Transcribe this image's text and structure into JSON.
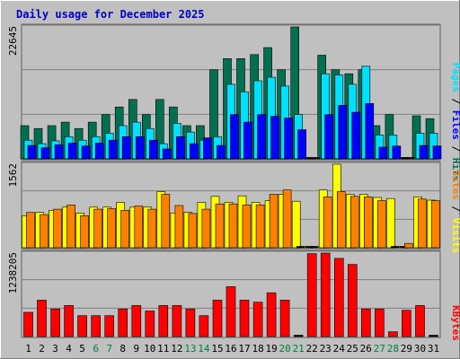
{
  "chart_data": {
    "type": "bar",
    "title": "Daily usage for December 2025",
    "categories": [
      "1",
      "2",
      "3",
      "4",
      "5",
      "6",
      "7",
      "8",
      "9",
      "10",
      "11",
      "12",
      "13",
      "14",
      "15",
      "16",
      "17",
      "18",
      "19",
      "20",
      "21",
      "22",
      "23",
      "24",
      "25",
      "26",
      "27",
      "28",
      "29",
      "30",
      "31"
    ],
    "weekend_days": [
      "6",
      "7",
      "13",
      "14",
      "20",
      "21",
      "27",
      "28"
    ],
    "panels": [
      {
        "name": "hits_files_pages",
        "y_label": "22645",
        "ylim": [
          0,
          22645
        ],
        "right_label": [
          "Pages",
          " / ",
          "Files",
          " / ",
          "Hits"
        ],
        "series": [
          {
            "name": "Hits",
            "color": "#007050",
            "values": [
              5700,
              5200,
              5700,
              6300,
              5200,
              6300,
              7600,
              8900,
              10200,
              7600,
              10200,
              8900,
              5700,
              5700,
              15300,
              17200,
              17200,
              17900,
              19100,
              15300,
              22645,
              0,
              17800,
              15300,
              14600,
              15300,
              5700,
              7600,
              0,
              7400,
              6900
            ]
          },
          {
            "name": "Files",
            "color": "#00e0ff",
            "values": [
              3200,
              2600,
              3100,
              3800,
              3200,
              3800,
              4400,
              5700,
              6300,
              5200,
              2600,
              6100,
              4600,
              3200,
              3800,
              12800,
              11500,
              13400,
              14000,
              12500,
              7600,
              0,
              14600,
              14400,
              12800,
              15900,
              4100,
              4100,
              0,
              4400,
              4400
            ]
          },
          {
            "name": "Pages",
            "color": "#0000ff",
            "values": [
              2300,
              1900,
              2400,
              2700,
              2200,
              2700,
              3200,
              3800,
              3800,
              3200,
              1700,
              3800,
              2600,
              3600,
              2300,
              7600,
              6300,
              7600,
              7300,
              7000,
              5000,
              0,
              7600,
              9200,
              8000,
              9500,
              2000,
              2200,
              0,
              2300,
              2200
            ]
          }
        ]
      },
      {
        "name": "visits_sites",
        "y_label": "1562",
        "ylim": [
          0,
          1562
        ],
        "right_label": [
          "Sites",
          " / ",
          "Visits"
        ],
        "series": [
          {
            "name": "Visits",
            "color": "#ffff00",
            "values": [
              600,
              660,
              700,
              760,
              650,
              760,
              760,
              850,
              760,
              760,
              1050,
              650,
              660,
              850,
              960,
              850,
              970,
              850,
              880,
              1000,
              870,
              0,
              1080,
              1562,
              1000,
              1000,
              940,
              920,
              0,
              950,
              890
            ]
          },
          {
            "name": "Sites",
            "color": "#ff8000",
            "values": [
              660,
              620,
              720,
              800,
              600,
              720,
              730,
              700,
              780,
              720,
              1000,
              790,
              640,
              720,
              820,
              820,
              800,
              800,
              1000,
              1080,
              0,
              0,
              950,
              1050,
              960,
              950,
              880,
              0,
              80,
              910,
              880
            ]
          }
        ]
      },
      {
        "name": "kbytes",
        "y_label": "1238205",
        "ylim": [
          0,
          1238205
        ],
        "right_label": [
          "KBytes"
        ],
        "series": [
          {
            "name": "KBytes",
            "color": "#ff0000",
            "values": [
              360000,
              540000,
              410000,
              460000,
              310000,
              310000,
              310000,
              410000,
              460000,
              380000,
              460000,
              460000,
              410000,
              310000,
              540000,
              740000,
              540000,
              510000,
              650000,
              540000,
              0,
              1230000,
              1238205,
              1160000,
              1070000,
              410000,
              410000,
              70000,
              390000,
              460000,
              0
            ]
          }
        ]
      }
    ]
  }
}
